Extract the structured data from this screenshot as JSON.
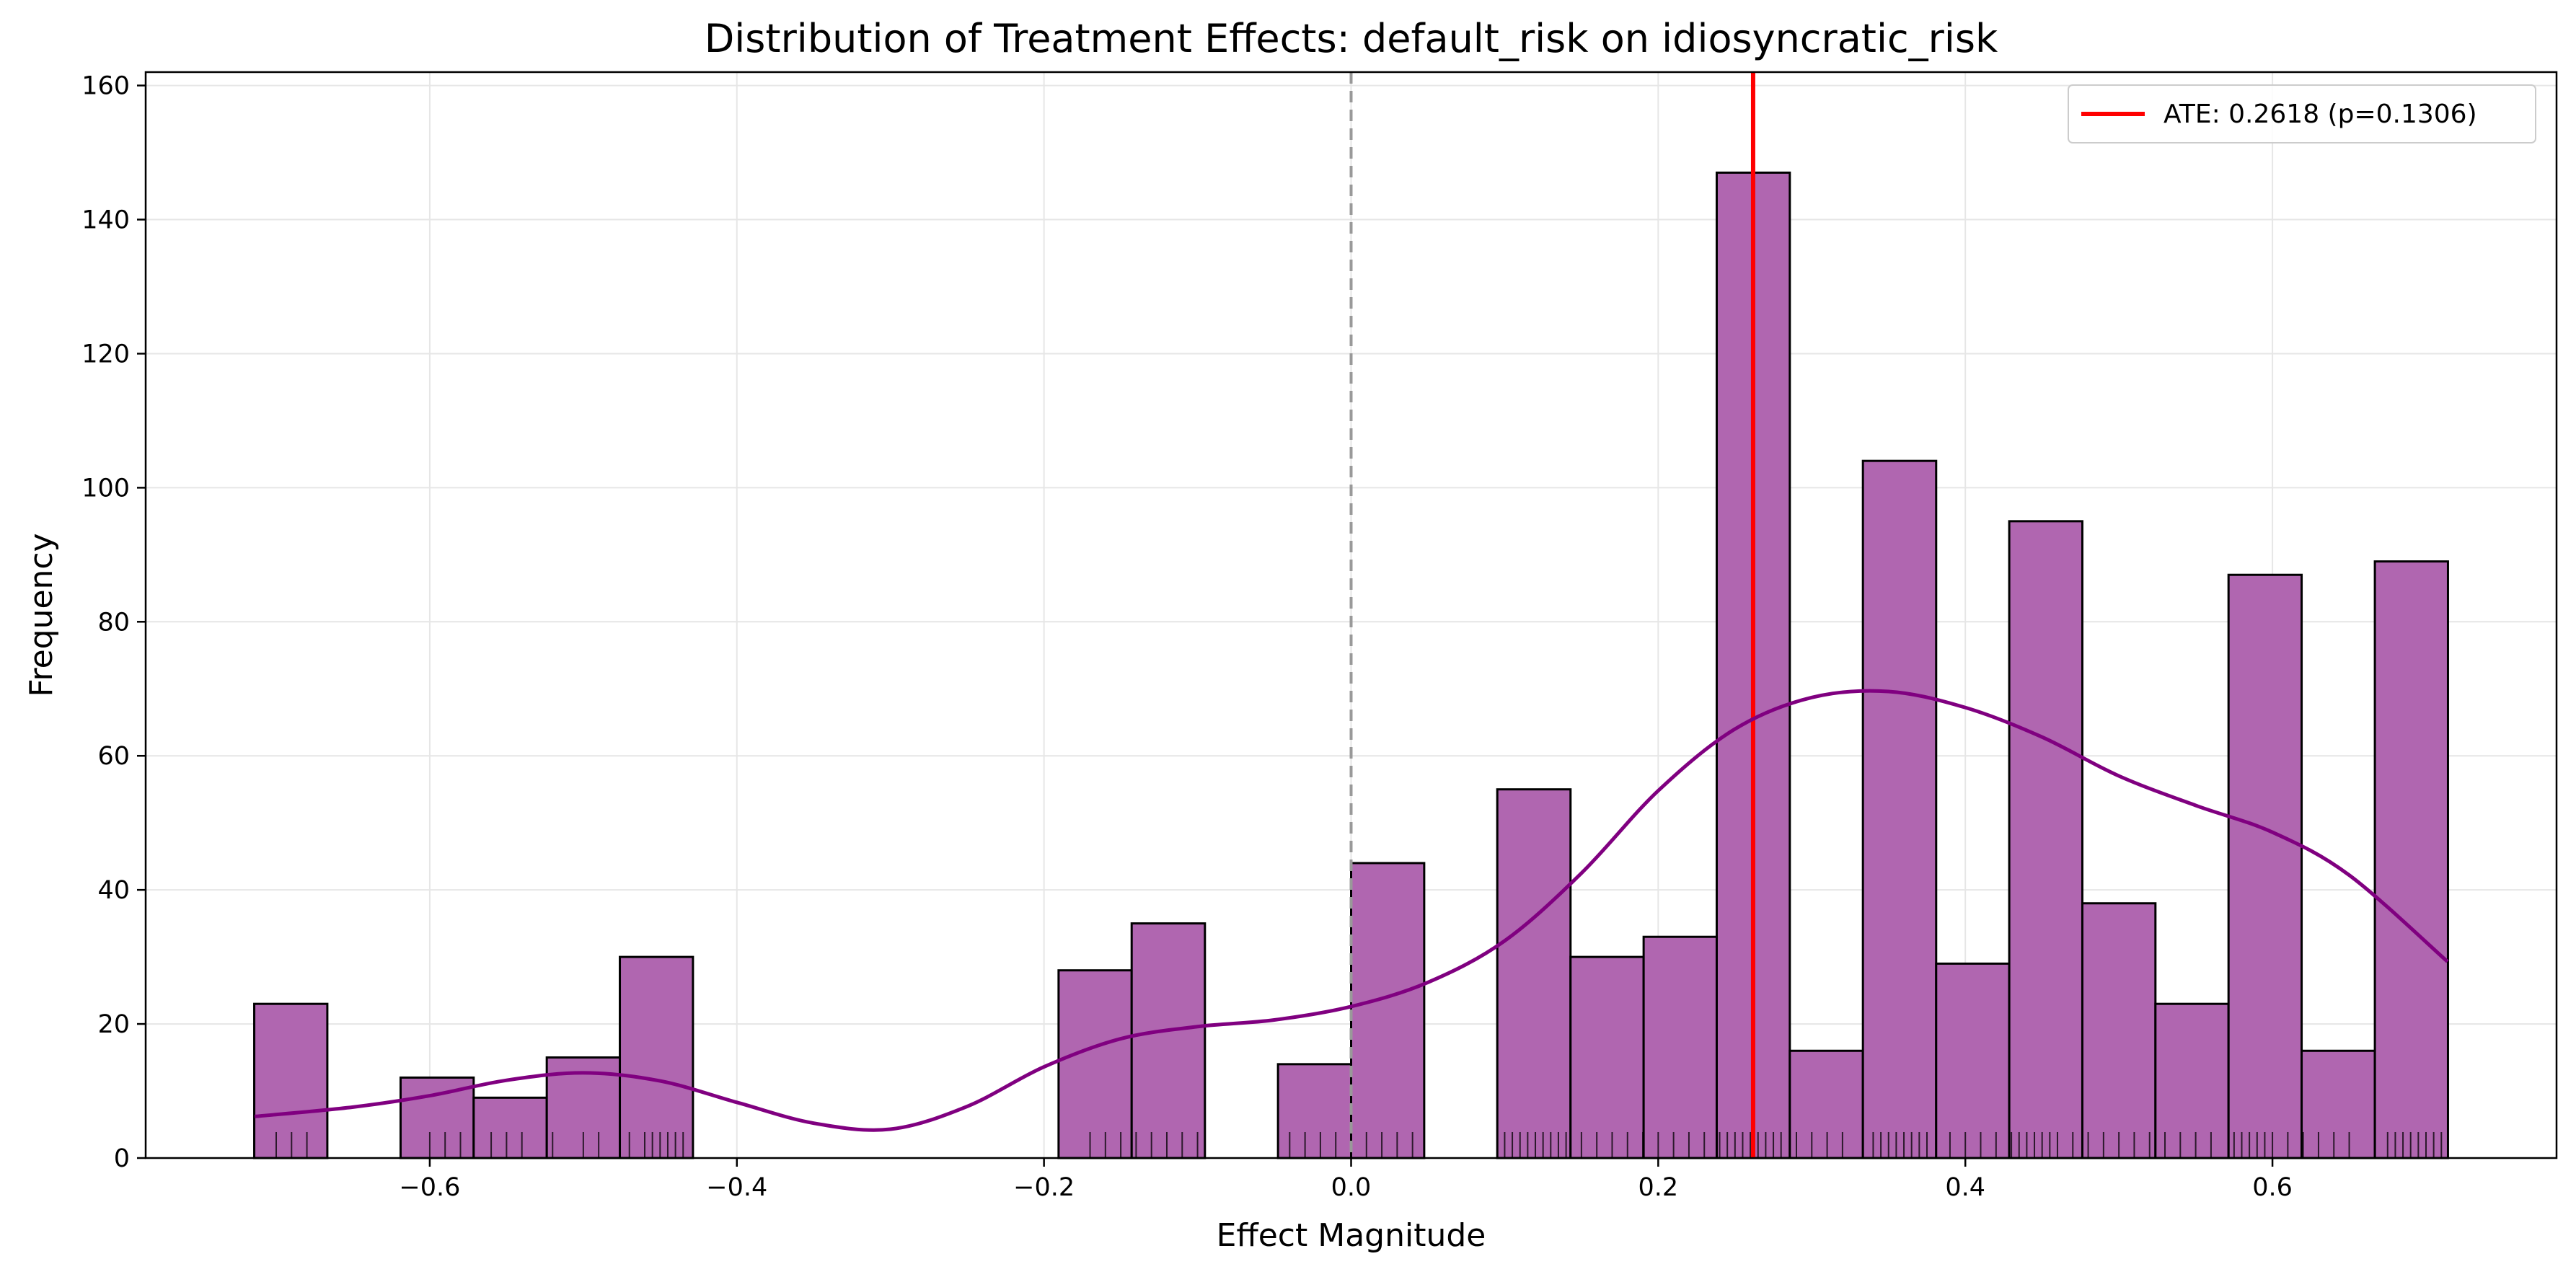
{
  "chart_data": {
    "type": "bar",
    "title": "Distribution of Treatment Effects: default_risk on idiosyncratic_risk",
    "xlabel": "Effect Magnitude",
    "ylabel": "Frequency",
    "xlim": [
      -0.785,
      0.785
    ],
    "ylim": [
      0,
      162
    ],
    "xticks": [
      -0.6,
      -0.4,
      -0.2,
      0.0,
      0.2,
      0.4,
      0.6
    ],
    "xtick_labels": [
      "−0.6",
      "−0.4",
      "−0.2",
      "0.0",
      "0.2",
      "0.4",
      "0.6"
    ],
    "yticks": [
      0,
      20,
      40,
      60,
      80,
      100,
      120,
      140,
      160
    ],
    "ytick_labels": [
      "0",
      "20",
      "40",
      "60",
      "80",
      "100",
      "120",
      "140",
      "160"
    ],
    "grid": true,
    "legend_position": "top-right",
    "colors": {
      "bar_fill": "#b066b0",
      "bar_edge": "#000000",
      "kde": "#800080",
      "ate_line": "#ff0000",
      "zero_line": "#999999",
      "grid": "#e6e6e6"
    },
    "bins": [
      {
        "x0": -0.7143,
        "x1": -0.6667,
        "count": 23
      },
      {
        "x0": -0.619,
        "x1": -0.5714,
        "count": 12
      },
      {
        "x0": -0.5714,
        "x1": -0.5238,
        "count": 9
      },
      {
        "x0": -0.5238,
        "x1": -0.4762,
        "count": 15
      },
      {
        "x0": -0.4762,
        "x1": -0.4286,
        "count": 30
      },
      {
        "x0": -0.1905,
        "x1": -0.1429,
        "count": 28
      },
      {
        "x0": -0.1429,
        "x1": -0.0952,
        "count": 35
      },
      {
        "x0": -0.0476,
        "x1": 0.0,
        "count": 14
      },
      {
        "x0": 0.0,
        "x1": 0.0476,
        "count": 44
      },
      {
        "x0": 0.0952,
        "x1": 0.1429,
        "count": 55
      },
      {
        "x0": 0.1429,
        "x1": 0.1905,
        "count": 30
      },
      {
        "x0": 0.1905,
        "x1": 0.2381,
        "count": 33
      },
      {
        "x0": 0.2381,
        "x1": 0.2857,
        "count": 147
      },
      {
        "x0": 0.2857,
        "x1": 0.3333,
        "count": 16
      },
      {
        "x0": 0.3333,
        "x1": 0.381,
        "count": 104
      },
      {
        "x0": 0.381,
        "x1": 0.4286,
        "count": 29
      },
      {
        "x0": 0.4286,
        "x1": 0.4762,
        "count": 95
      },
      {
        "x0": 0.4762,
        "x1": 0.5238,
        "count": 38
      },
      {
        "x0": 0.5238,
        "x1": 0.5714,
        "count": 23
      },
      {
        "x0": 0.5714,
        "x1": 0.619,
        "count": 87
      },
      {
        "x0": 0.619,
        "x1": 0.6667,
        "count": 16
      },
      {
        "x0": 0.6667,
        "x1": 0.7143,
        "count": 89
      }
    ],
    "kde": {
      "x": [
        -0.714,
        -0.65,
        -0.6,
        -0.55,
        -0.5,
        -0.45,
        -0.4,
        -0.35,
        -0.3,
        -0.25,
        -0.2,
        -0.15,
        -0.1,
        -0.05,
        0.0,
        0.05,
        0.1,
        0.15,
        0.2,
        0.25,
        0.3,
        0.35,
        0.4,
        0.45,
        0.5,
        0.55,
        0.6,
        0.65,
        0.714
      ],
      "y": [
        6.2,
        7.6,
        9.3,
        11.6,
        12.7,
        11.5,
        8.3,
        5.2,
        4.3,
        7.7,
        13.6,
        17.8,
        19.6,
        20.6,
        22.6,
        26.2,
        32.4,
        42.5,
        54.8,
        64.0,
        68.7,
        69.6,
        67.2,
        62.8,
        57.0,
        52.6,
        48.6,
        42.2,
        29.3
      ]
    },
    "rug": [
      -0.7,
      -0.69,
      -0.68,
      -0.6,
      -0.59,
      -0.58,
      -0.56,
      -0.55,
      -0.54,
      -0.52,
      -0.5,
      -0.49,
      -0.47,
      -0.46,
      -0.455,
      -0.45,
      -0.445,
      -0.44,
      -0.435,
      -0.17,
      -0.16,
      -0.15,
      -0.14,
      -0.13,
      -0.12,
      -0.11,
      -0.1,
      -0.04,
      -0.03,
      -0.02,
      -0.01,
      0.01,
      0.02,
      0.03,
      0.04,
      0.1,
      0.105,
      0.11,
      0.115,
      0.12,
      0.125,
      0.13,
      0.135,
      0.14,
      0.15,
      0.16,
      0.17,
      0.18,
      0.19,
      0.2,
      0.21,
      0.22,
      0.23,
      0.24,
      0.245,
      0.25,
      0.255,
      0.26,
      0.265,
      0.27,
      0.275,
      0.28,
      0.29,
      0.3,
      0.31,
      0.32,
      0.34,
      0.345,
      0.35,
      0.355,
      0.36,
      0.365,
      0.37,
      0.375,
      0.39,
      0.4,
      0.41,
      0.42,
      0.43,
      0.435,
      0.44,
      0.445,
      0.45,
      0.455,
      0.46,
      0.47,
      0.48,
      0.49,
      0.5,
      0.51,
      0.52,
      0.53,
      0.54,
      0.55,
      0.56,
      0.575,
      0.58,
      0.585,
      0.59,
      0.595,
      0.6,
      0.61,
      0.62,
      0.63,
      0.64,
      0.65,
      0.675,
      0.68,
      0.685,
      0.69,
      0.695,
      0.7,
      0.705,
      0.71
    ],
    "ate": {
      "value": 0.2618,
      "label": "ATE: 0.2618 (p=0.1306)"
    },
    "reference_line": 0.0
  }
}
